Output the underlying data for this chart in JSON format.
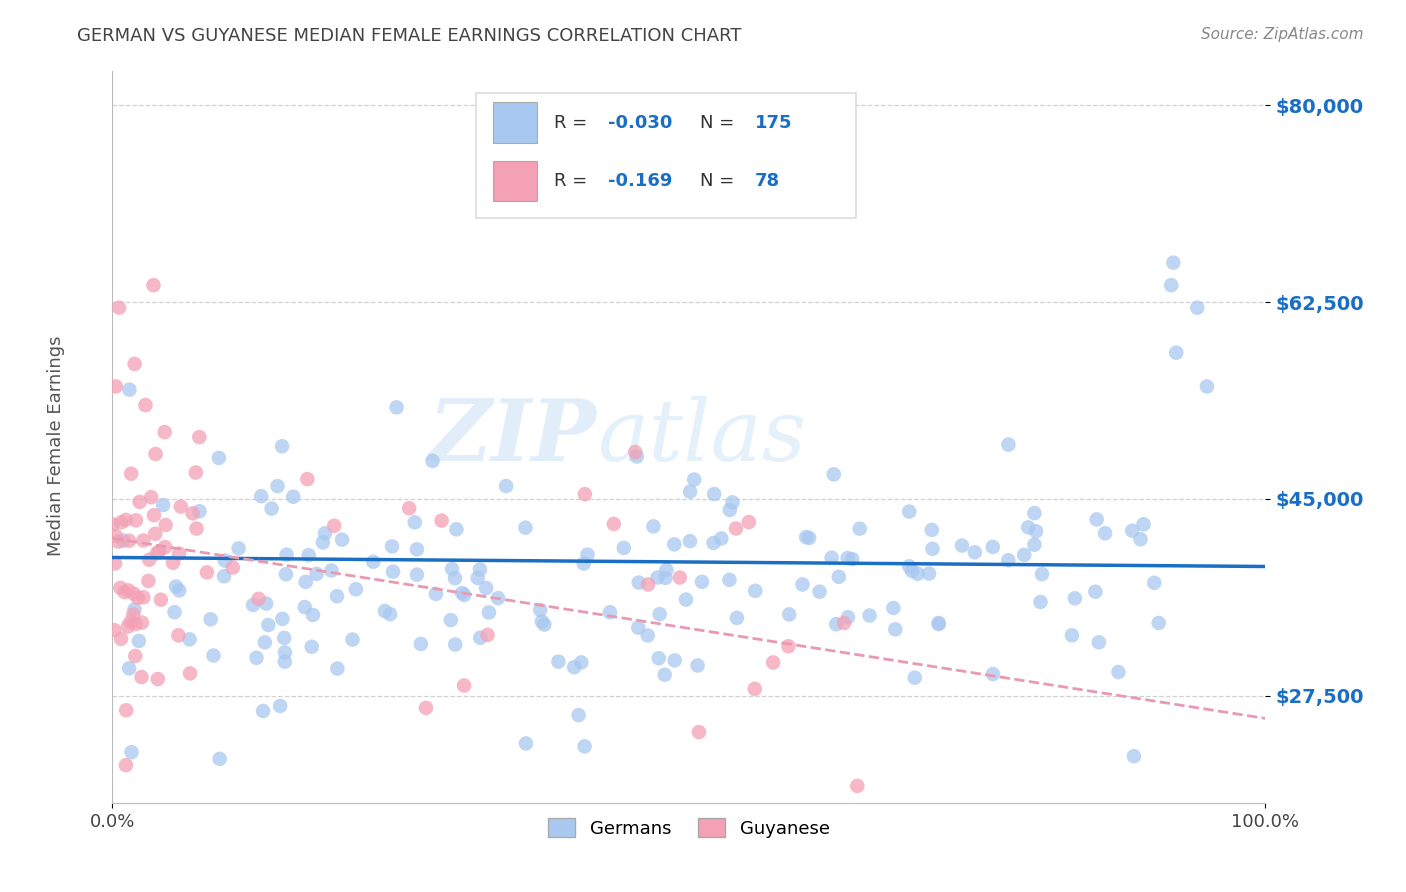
{
  "title": "GERMAN VS GUYANESE MEDIAN FEMALE EARNINGS CORRELATION CHART",
  "source": "Source: ZipAtlas.com",
  "ylabel": "Median Female Earnings",
  "xlim": [
    0.0,
    1.0
  ],
  "ylim": [
    18000,
    83000
  ],
  "yticks": [
    27500,
    45000,
    62500,
    80000
  ],
  "ytick_labels": [
    "$27,500",
    "$45,000",
    "$62,500",
    "$80,000"
  ],
  "xtick_positions": [
    0.0,
    1.0
  ],
  "xtick_labels": [
    "0.0%",
    "100.0%"
  ],
  "german_R": "-0.030",
  "german_N": "175",
  "guyanese_R": "-0.169",
  "guyanese_N": "78",
  "german_color": "#a8c8f0",
  "guyanese_color": "#f4a0b5",
  "german_line_color": "#1a6fc4",
  "guyanese_line_color": "#e89ab0",
  "legend_label_1": "Germans",
  "legend_label_2": "Guyanese",
  "watermark_zip": "ZIP",
  "watermark_atlas": "atlas",
  "background_color": "#ffffff",
  "grid_color": "#cccccc",
  "title_color": "#444444",
  "axis_label_color": "#555555",
  "ytick_color": "#1a6fc4",
  "source_color": "#888888"
}
